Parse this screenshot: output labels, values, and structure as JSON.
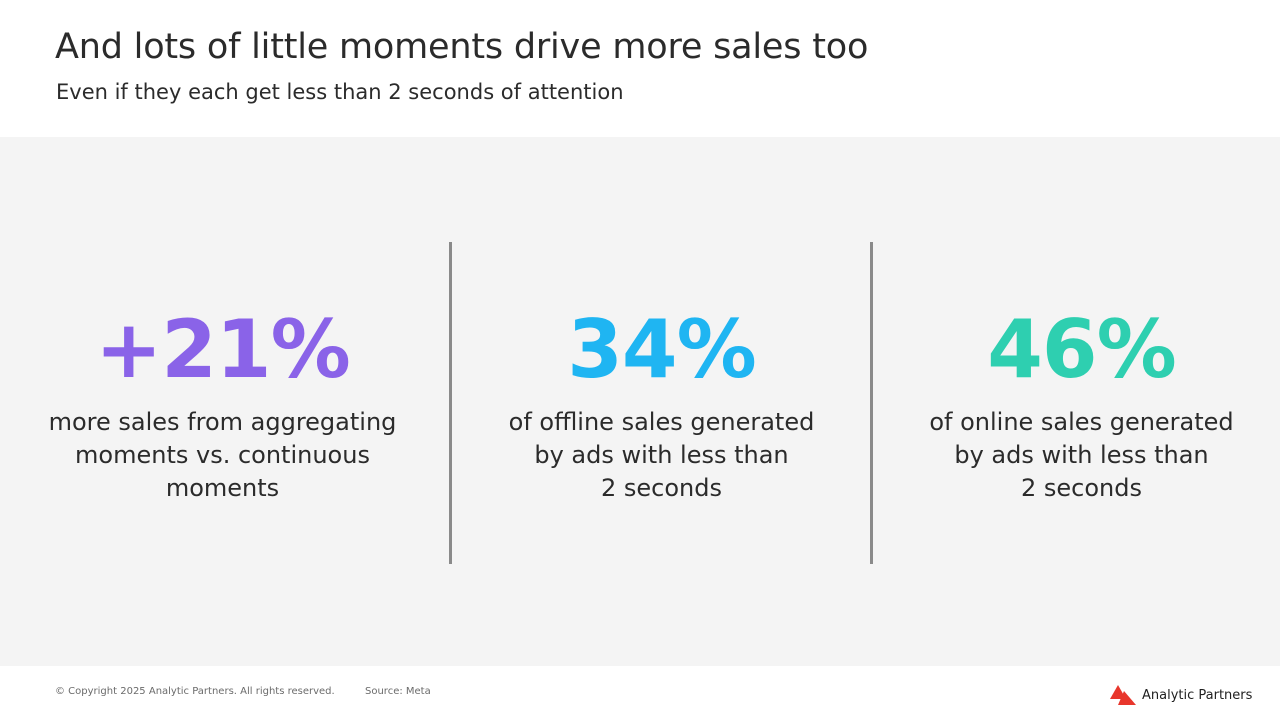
{
  "header": {
    "title": "And lots of little moments drive more sales too",
    "subtitle": "Even if they each get less than 2 seconds of attention"
  },
  "stats": [
    {
      "value": "+21%",
      "description": "more sales from aggregating\nmoments vs. continuous\nmoments",
      "color": "#8a63e8"
    },
    {
      "value": "34%",
      "description": "of offline sales generated\nby ads with less than\n2 seconds",
      "color": "#1fb5f2"
    },
    {
      "value": "46%",
      "description": "of online sales generated\nby ads with less than\n2 seconds",
      "color": "#2ecfb0"
    }
  ],
  "footer": {
    "copyright": "© Copyright 2025 Analytic Partners. All rights reserved.",
    "source": "Source: Meta",
    "brand_name": "Analytic Partners",
    "brand_icon": "analytic-partners-logo-icon",
    "brand_color": "#e8362c"
  }
}
